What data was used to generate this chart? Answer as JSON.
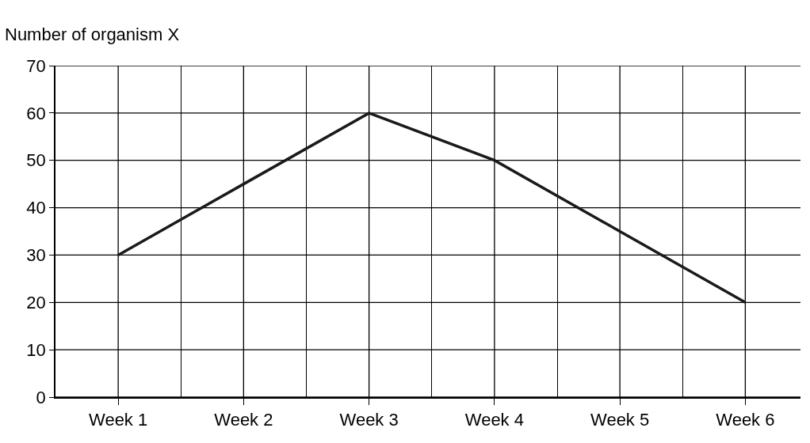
{
  "chart_data": {
    "type": "line",
    "ylabel": "Number of organism X",
    "categories": [
      "Week 1",
      "Week 2",
      "Week 3",
      "Week 4",
      "Week 5",
      "Week 6"
    ],
    "series": [
      {
        "color": "#1a1a1a",
        "values": [
          30,
          45,
          60,
          50,
          35,
          20
        ]
      }
    ],
    "ylim": [
      0,
      70
    ],
    "yticks": [
      0,
      10,
      20,
      30,
      40,
      50,
      60,
      70
    ],
    "grid": true,
    "marker": "none",
    "line_style": "solid"
  }
}
